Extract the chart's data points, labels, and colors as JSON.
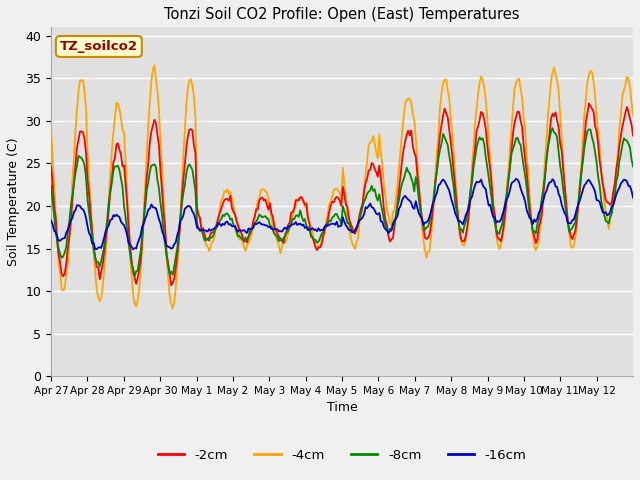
{
  "title": "Tonzi Soil CO2 Profile: Open (East) Temperatures",
  "xlabel": "Time",
  "ylabel": "Soil Temperature (C)",
  "ylim": [
    0,
    41
  ],
  "yticks": [
    0,
    5,
    10,
    15,
    20,
    25,
    30,
    35,
    40
  ],
  "xlabels": [
    "Apr 27",
    "Apr 28",
    "Apr 29",
    "Apr 30",
    "May 1",
    "May 2",
    "May 3",
    "May 4",
    "May 5",
    "May 6",
    "May 7",
    "May 8",
    "May 9",
    "May 10",
    "May 11",
    "May 12"
  ],
  "colors": {
    "-2cm": "#ff0000",
    "-4cm": "#ffa500",
    "-8cm": "#008800",
    "-16cm": "#0000cc"
  },
  "legend_label": "TZ_soilco2",
  "legend_color": "#ffffcc",
  "legend_border": "#cc8800",
  "legend_text_color": "#990000",
  "fig_facecolor": "#f0f0f0",
  "ax_facecolor": "#e0e0e0",
  "grid_color": "#ffffff",
  "line_width": 1.3
}
